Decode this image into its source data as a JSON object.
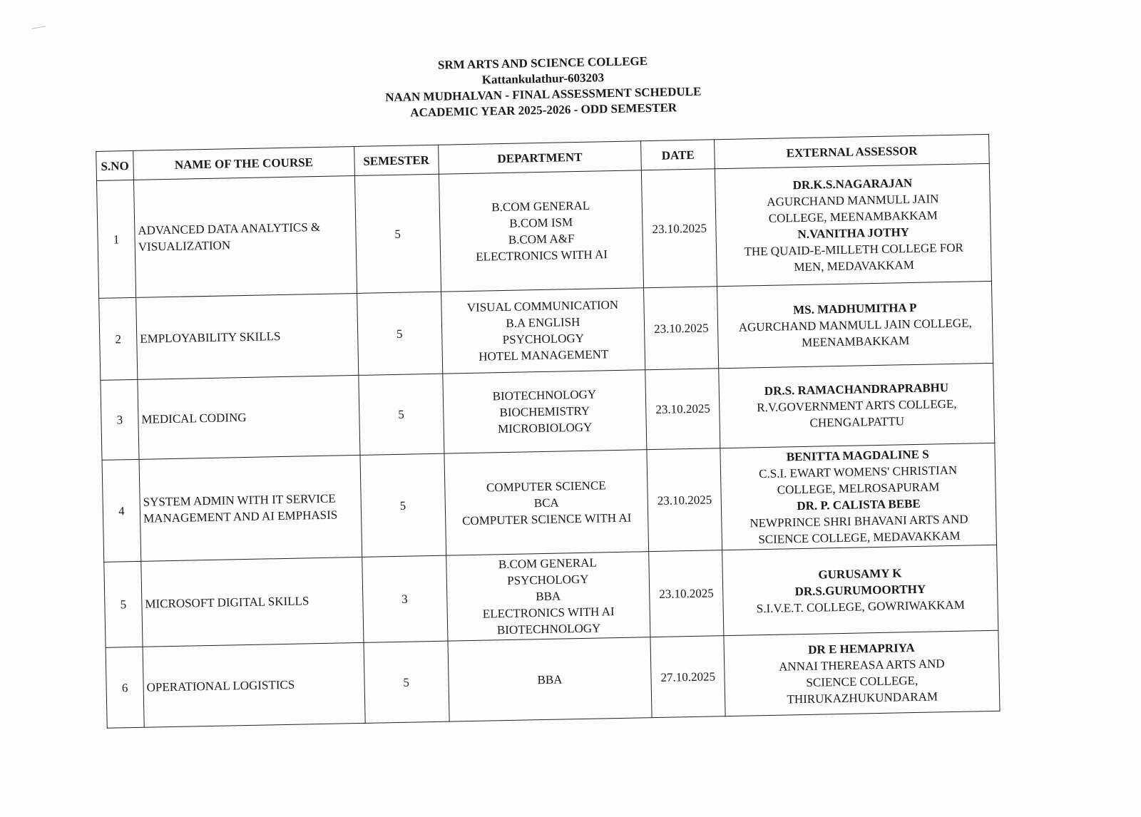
{
  "header": {
    "college": "SRM ARTS AND SCIENCE COLLEGE",
    "location": "Kattankulathur-603203",
    "title": "NAAN MUDHALVAN - FINAL ASSESSMENT SCHEDULE",
    "year": "ACADEMIC YEAR 2025-2026 - ODD SEMESTER"
  },
  "table": {
    "columns": [
      "S.NO",
      "NAME OF THE COURSE",
      "SEMESTER",
      "DEPARTMENT",
      "DATE",
      "EXTERNAL ASSESSOR"
    ],
    "rows": [
      {
        "sno": "1",
        "course": "ADVANCED DATA ANALYTICS & VISUALIZATION",
        "semester": "5",
        "departments": [
          "B.COM GENERAL",
          "B.COM ISM",
          "B.COM A&F",
          "ELECTRONICS WITH AI"
        ],
        "date": "23.10.2025",
        "assessor": [
          {
            "t": "DR.K.S.NAGARAJAN",
            "bold": true
          },
          {
            "t": "AGURCHAND MANMULL JAIN"
          },
          {
            "t": "COLLEGE, MEENAMBAKKAM"
          },
          {
            "t": "N.VANITHA JOTHY",
            "bold": true
          },
          {
            "t": "THE QUAID-E-MILLETH COLLEGE FOR"
          },
          {
            "t": "MEN, MEDAVAKKAM"
          }
        ]
      },
      {
        "sno": "2",
        "course": "EMPLOYABILITY SKILLS",
        "semester": "5",
        "departments": [
          "VISUAL COMMUNICATION",
          "B.A ENGLISH",
          "PSYCHOLOGY",
          "HOTEL MANAGEMENT"
        ],
        "date": "23.10.2025",
        "assessor": [
          {
            "t": "MS. MADHUMITHA P",
            "bold": true
          },
          {
            "t": "AGURCHAND MANMULL JAIN COLLEGE,"
          },
          {
            "t": "MEENAMBAKKAM"
          }
        ]
      },
      {
        "sno": "3",
        "course": "MEDICAL CODING",
        "semester": "5",
        "departments": [
          "BIOTECHNOLOGY",
          "BIOCHEMISTRY",
          "MICROBIOLOGY"
        ],
        "date": "23.10.2025",
        "assessor": [
          {
            "t": "DR.S. RAMACHANDRAPRABHU",
            "bold": true
          },
          {
            "t": "R.V.GOVERNMENT ARTS COLLEGE,"
          },
          {
            "t": "CHENGALPATTU"
          }
        ]
      },
      {
        "sno": "4",
        "course": "SYSTEM ADMIN WITH IT SERVICE MANAGEMENT AND AI EMPHASIS",
        "semester": "5",
        "departments": [
          "COMPUTER SCIENCE",
          "BCA",
          "COMPUTER SCIENCE WITH AI"
        ],
        "date": "23.10.2025",
        "assessor": [
          {
            "t": "BENITTA MAGDALINE S",
            "bold": true
          },
          {
            "t": "C.S.I. EWART WOMENS' CHRISTIAN"
          },
          {
            "t": "COLLEGE, MELROSAPURAM"
          },
          {
            "t": "DR. P. CALISTA BEBE",
            "bold": true
          },
          {
            "t": "NEWPRINCE SHRI BHAVANI ARTS AND"
          },
          {
            "t": "SCIENCE COLLEGE, MEDAVAKKAM"
          }
        ]
      },
      {
        "sno": "5",
        "course": "MICROSOFT DIGITAL SKILLS",
        "semester": "3",
        "departments": [
          "B.COM GENERAL",
          "PSYCHOLOGY",
          "BBA",
          "ELECTRONICS WITH AI",
          "BIOTECHNOLOGY"
        ],
        "date": "23.10.2025",
        "assessor": [
          {
            "t": "GURUSAMY K",
            "bold": true
          },
          {
            "t": "DR.S.GURUMOORTHY",
            "bold": true
          },
          {
            "t": "S.I.V.E.T. COLLEGE, GOWRIWAKKAM"
          }
        ]
      },
      {
        "sno": "6",
        "course": "OPERATIONAL LOGISTICS",
        "semester": "5",
        "departments": [
          "BBA"
        ],
        "date": "27.10.2025",
        "assessor": [
          {
            "t": "DR E HEMAPRIYA",
            "bold": true
          },
          {
            "t": "ANNAI THEREASA ARTS AND"
          },
          {
            "t": "SCIENCE COLLEGE,"
          },
          {
            "t": "THIRUKAZHUKUNDARAM"
          }
        ]
      }
    ]
  }
}
